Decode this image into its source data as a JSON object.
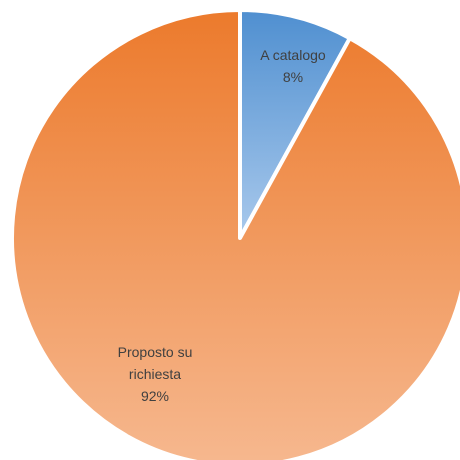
{
  "chart_data": {
    "type": "pie",
    "title": "",
    "slices": [
      {
        "label": "A catalogo",
        "value": 8,
        "value_label": "8%",
        "color": "#5b9bd5"
      },
      {
        "label": "Proposto su richiesta",
        "value": 92,
        "value_label": "92%",
        "color": "#ed7d31"
      }
    ],
    "start_angle_deg": 0,
    "direction": "clockwise",
    "fill": "gradient",
    "slice_separator_color": "#ffffff",
    "legend": "none"
  }
}
